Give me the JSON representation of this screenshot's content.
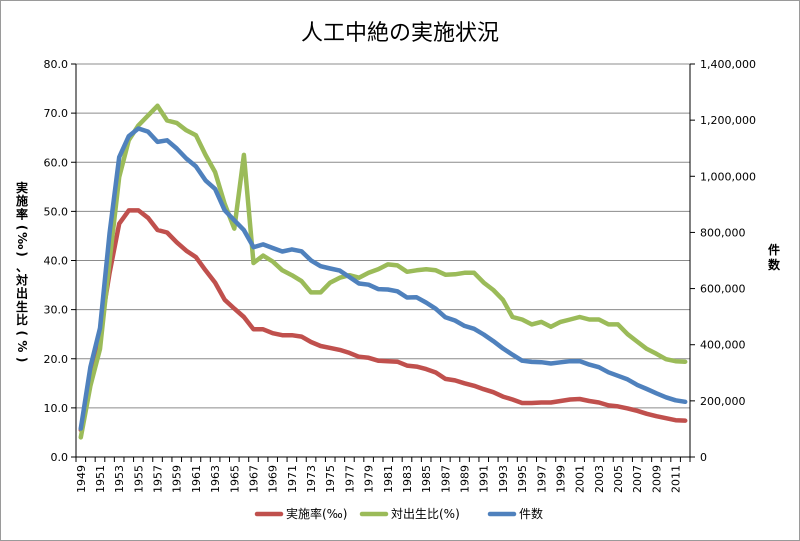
{
  "chart_data": {
    "type": "line",
    "title": "人工中絶の実施状況",
    "ylabel_left": "実施率(‰)、対出生比(%)",
    "ylabel_right": "件数",
    "ylim_left": [
      0,
      80
    ],
    "ylim_right": [
      0,
      1400000
    ],
    "yticks_left": [
      "0.0",
      "10.0",
      "20.0",
      "30.0",
      "40.0",
      "50.0",
      "60.0",
      "70.0",
      "80.0"
    ],
    "yticks_right": [
      "0",
      "200,000",
      "400,000",
      "600,000",
      "800,000",
      "1,000,000",
      "1,200,000",
      "1,400,000"
    ],
    "x": [
      1949,
      1950,
      1951,
      1952,
      1953,
      1954,
      1955,
      1956,
      1957,
      1958,
      1959,
      1960,
      1961,
      1962,
      1963,
      1964,
      1965,
      1966,
      1967,
      1968,
      1969,
      1970,
      1971,
      1972,
      1973,
      1974,
      1975,
      1976,
      1977,
      1978,
      1979,
      1980,
      1981,
      1982,
      1983,
      1984,
      1985,
      1986,
      1987,
      1988,
      1989,
      1990,
      1991,
      1992,
      1993,
      1994,
      1995,
      1996,
      1997,
      1998,
      1999,
      2000,
      2001,
      2002,
      2003,
      2004,
      2005,
      2006,
      2007,
      2008,
      2009,
      2010,
      2011,
      2012
    ],
    "xtick_labels": [
      "1949",
      "1951",
      "1953",
      "1955",
      "1957",
      "1959",
      "1961",
      "1963",
      "1965",
      "1967",
      "1969",
      "1971",
      "1973",
      "1975",
      "1977",
      "1979",
      "1981",
      "1983",
      "1985",
      "1987",
      "1989",
      "1991",
      "1993",
      "1995",
      "1997",
      "1999",
      "2001",
      "2003",
      "2005",
      "2007",
      "2009",
      "2011"
    ],
    "series": [
      {
        "name": "実施率(‰)",
        "axis": "left",
        "color": "#c0504d",
        "values": [
          5.5,
          16.0,
          25.5,
          37.5,
          47.5,
          50.2,
          50.2,
          48.7,
          46.2,
          45.7,
          43.7,
          42.0,
          40.7,
          38.0,
          35.5,
          32.0,
          30.2,
          28.5,
          26.0,
          26.0,
          25.2,
          24.8,
          24.8,
          24.5,
          23.4,
          22.6,
          22.2,
          21.8,
          21.2,
          20.4,
          20.2,
          19.6,
          19.5,
          19.4,
          18.6,
          18.4,
          17.9,
          17.2,
          15.9,
          15.6,
          15.0,
          14.5,
          13.8,
          13.2,
          12.3,
          11.7,
          11.0,
          11.0,
          11.1,
          11.1,
          11.4,
          11.7,
          11.8,
          11.4,
          11.1,
          10.5,
          10.3,
          9.9,
          9.4,
          8.8,
          8.3,
          7.9,
          7.5,
          7.4
        ]
      },
      {
        "name": "対出生比(%)",
        "axis": "left",
        "color": "#9bbb59",
        "values": [
          4.0,
          14.5,
          22.0,
          40.0,
          57.0,
          64.5,
          67.5,
          69.5,
          71.5,
          68.5,
          68.0,
          66.5,
          65.5,
          61.5,
          58.0,
          51.5,
          46.5,
          61.5,
          39.5,
          41.0,
          39.8,
          38.0,
          37.0,
          35.8,
          33.5,
          33.5,
          35.5,
          36.5,
          37.0,
          36.5,
          37.5,
          38.2,
          39.2,
          39.0,
          37.7,
          38.0,
          38.2,
          38.0,
          37.1,
          37.2,
          37.5,
          37.5,
          35.5,
          34.0,
          32.0,
          28.5,
          28.0,
          27.0,
          27.5,
          26.5,
          27.5,
          28.0,
          28.5,
          28.0,
          28.0,
          27.0,
          27.0,
          25.0,
          23.5,
          22.0,
          21.0,
          19.9,
          19.5,
          19.4
        ]
      },
      {
        "name": "件数",
        "axis": "right",
        "color": "#4f81bd",
        "values": [
          101601,
          320150,
          458757,
          798193,
          1068066,
          1143059,
          1170143,
          1159288,
          1122316,
          1128231,
          1098853,
          1063256,
          1035329,
          985351,
          955092,
          878748,
          843248,
          808378,
          747490,
          757389,
          744451,
          732033,
          739674,
          732653,
          700532,
          679837,
          671597,
          664106,
          641242,
          618044,
          613676,
          598084,
          596569,
          590299,
          568363,
          568916,
          550127,
          527900,
          497756,
          486146,
          466876,
          456797,
          436299,
          413032,
          386807,
          364350,
          343024,
          338867,
          337799,
          333220,
          337288,
          341146,
          341588,
          329326,
          319831,
          301673,
          289127,
          276352,
          256672,
          242326,
          226878,
          212694,
          202106,
          196639
        ]
      }
    ]
  }
}
